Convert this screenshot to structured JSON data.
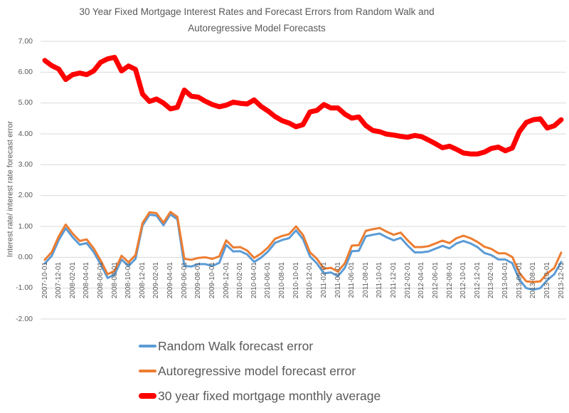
{
  "chart_data": {
    "type": "line",
    "title": "30 Year Fixed Mortgage Interest Rates and Forecast Errors from Random Walk and Autoregressive Model Forecasts",
    "title_lines": [
      "30 Year Fixed Mortgage Interest Rates and Forecast Errors from Random Walk and",
      "Autoregressive Model Forecasts"
    ],
    "ylabel": "Interest rate/ interest rate forecast error",
    "xlabel": "",
    "ylim": [
      -2,
      7
    ],
    "y_ticks": [
      "7.00",
      "6.00",
      "5.00",
      "4.00",
      "3.00",
      "2.00",
      "1.00",
      "0.00",
      "-1.00",
      "-2.00"
    ],
    "grid": true,
    "legend_position": "bottom-left-aligned",
    "x_tick_every": 2,
    "style": {
      "background": "#FFFFFF",
      "grid_color": "#D9D9D9",
      "text_color": "#595959"
    },
    "categories": [
      "2007-10-01",
      "2007-11-01",
      "2007-12-01",
      "2008-01-01",
      "2008-02-01",
      "2008-03-01",
      "2008-04-01",
      "2008-05-01",
      "2008-06-01",
      "2008-07-01",
      "2008-08-01",
      "2008-09-01",
      "2008-10-01",
      "2008-11-01",
      "2008-12-01",
      "2009-01-01",
      "2009-02-01",
      "2009-03-01",
      "2009-04-01",
      "2009-05-01",
      "2009-06-01",
      "2009-07-01",
      "2009-08-01",
      "2009-09-01",
      "2009-10-01",
      "2009-11-01",
      "2009-12-01",
      "2010-01-01",
      "2010-02-01",
      "2010-03-01",
      "2010-04-01",
      "2010-05-01",
      "2010-06-01",
      "2010-07-01",
      "2010-08-01",
      "2010-09-01",
      "2010-10-01",
      "2010-11-01",
      "2010-12-01",
      "2011-01-01",
      "2011-02-01",
      "2011-03-01",
      "2011-04-01",
      "2011-05-01",
      "2011-06-01",
      "2011-07-01",
      "2011-08-01",
      "2011-09-01",
      "2011-10-01",
      "2011-11-01",
      "2011-12-01",
      "2012-01-01",
      "2012-02-01",
      "2012-03-01",
      "2012-04-01",
      "2012-05-01",
      "2012-06-01",
      "2012-07-01",
      "2012-08-01",
      "2012-09-01",
      "2012-10-01",
      "2012-11-01",
      "2012-12-01",
      "2013-01-01",
      "2013-02-01",
      "2013-03-01",
      "2013-04-01",
      "2013-05-01",
      "2013-06-01",
      "2013-07-01",
      "2013-08-01",
      "2013-09-01",
      "2013-10-01",
      "2013-11-01",
      "2013-12-01"
    ],
    "series": [
      {
        "name": "Random Walk forecast error",
        "color": "#5B9BD5",
        "line_width": 3,
        "values": [
          -0.2,
          0.05,
          0.56,
          0.94,
          0.65,
          0.41,
          0.46,
          0.17,
          -0.22,
          -0.67,
          -0.56,
          -0.07,
          -0.28,
          -0.05,
          1.03,
          1.38,
          1.35,
          1.04,
          1.39,
          1.23,
          -0.28,
          -0.3,
          -0.22,
          -0.22,
          -0.28,
          -0.18,
          0.4,
          0.19,
          0.2,
          0.09,
          -0.15,
          -0.01,
          0.19,
          0.47,
          0.56,
          0.62,
          0.87,
          0.59,
          0.03,
          -0.2,
          -0.52,
          -0.49,
          -0.61,
          -0.34,
          0.2,
          0.21,
          0.68,
          0.73,
          0.77,
          0.65,
          0.55,
          0.63,
          0.38,
          0.16,
          0.16,
          0.19,
          0.28,
          0.37,
          0.29,
          0.45,
          0.53,
          0.45,
          0.33,
          0.14,
          0.07,
          -0.07,
          -0.07,
          -0.19,
          -0.72,
          -1.0,
          -1.05,
          -1.0,
          -0.74,
          -0.55,
          -0.15
        ]
      },
      {
        "name": "Autoregressive model forecast error",
        "color": "#ED7D31",
        "line_width": 3,
        "values": [
          -0.08,
          0.17,
          0.68,
          1.06,
          0.77,
          0.53,
          0.58,
          0.29,
          -0.1,
          -0.55,
          -0.44,
          0.05,
          -0.16,
          0.07,
          1.11,
          1.46,
          1.43,
          1.12,
          1.47,
          1.31,
          -0.05,
          -0.08,
          -0.02,
          0.0,
          -0.05,
          0.03,
          0.55,
          0.32,
          0.33,
          0.22,
          -0.02,
          0.12,
          0.32,
          0.6,
          0.69,
          0.75,
          1.0,
          0.72,
          0.16,
          -0.05,
          -0.37,
          -0.34,
          -0.46,
          -0.19,
          0.38,
          0.39,
          0.86,
          0.91,
          0.95,
          0.83,
          0.73,
          0.8,
          0.55,
          0.33,
          0.33,
          0.36,
          0.45,
          0.54,
          0.46,
          0.62,
          0.7,
          0.62,
          0.5,
          0.34,
          0.27,
          0.13,
          0.13,
          0.01,
          -0.5,
          -0.78,
          -0.8,
          -0.78,
          -0.52,
          -0.35,
          0.15
        ]
      },
      {
        "name": "30 year fixed mortgage monthly average",
        "color": "#FF0000",
        "line_width": 7,
        "values": [
          6.38,
          6.21,
          6.1,
          5.76,
          5.92,
          5.97,
          5.92,
          6.04,
          6.32,
          6.43,
          6.48,
          6.04,
          6.2,
          6.09,
          5.29,
          5.05,
          5.13,
          5.0,
          4.81,
          4.86,
          5.42,
          5.22,
          5.19,
          5.06,
          4.95,
          4.88,
          4.93,
          5.03,
          4.99,
          4.97,
          5.1,
          4.89,
          4.74,
          4.56,
          4.43,
          4.35,
          4.23,
          4.3,
          4.71,
          4.76,
          4.95,
          4.84,
          4.84,
          4.64,
          4.51,
          4.55,
          4.27,
          4.11,
          4.07,
          3.99,
          3.96,
          3.92,
          3.89,
          3.95,
          3.91,
          3.8,
          3.68,
          3.55,
          3.6,
          3.5,
          3.38,
          3.35,
          3.35,
          3.41,
          3.53,
          3.57,
          3.45,
          3.54,
          4.07,
          4.37,
          4.46,
          4.49,
          4.19,
          4.26,
          4.46
        ]
      }
    ]
  }
}
